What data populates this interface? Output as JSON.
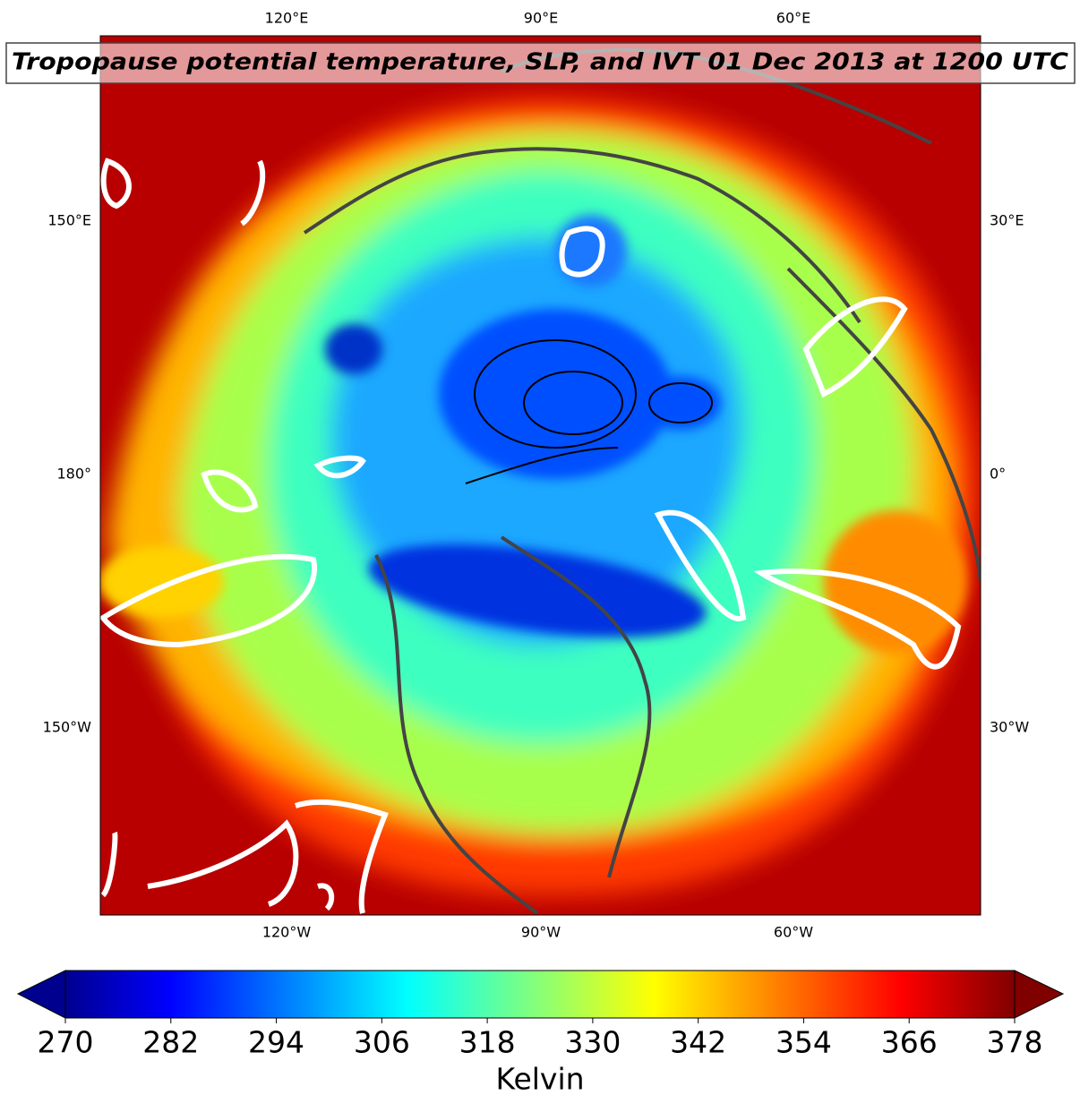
{
  "map": {
    "title": "Tropopause potential temperature, SLP, and IVT 01 Dec 2013 at 1200 UTC",
    "lon_labels": {
      "top": [
        "120°E",
        "90°E",
        "60°E"
      ],
      "left": [
        "150°E",
        "180°",
        "150°W"
      ],
      "right": [
        "30°E",
        "0°",
        "30°W"
      ],
      "bottom": [
        "120°W",
        "90°W",
        "60°W"
      ]
    }
  },
  "colorbar": {
    "label": "Kelvin",
    "lim": [
      270,
      378
    ],
    "ticks": [
      270,
      282,
      294,
      306,
      318,
      330,
      342,
      354,
      366,
      378
    ]
  }
}
